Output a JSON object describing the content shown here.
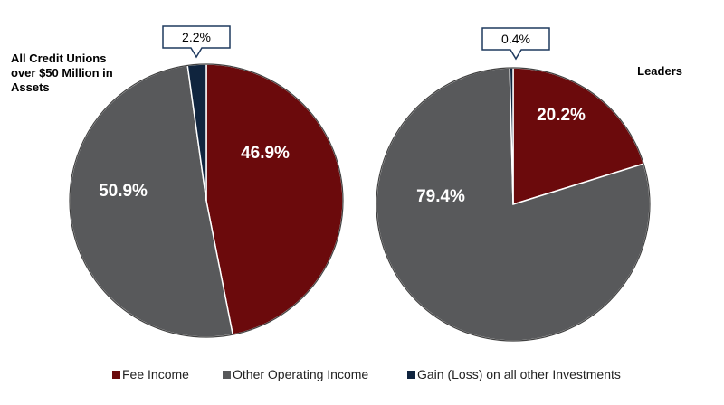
{
  "legend": {
    "placement": "bottom",
    "items": [
      {
        "label": "Fee Income",
        "color": "#6b0a0c"
      },
      {
        "label": "Other Operating Income",
        "color": "#58595b"
      },
      {
        "label": "Gain (Loss) on all other Investments",
        "color": "#0f243e"
      }
    ]
  },
  "chart_data": [
    {
      "type": "pie",
      "title": "All Credit Unions over $50 Million in Assets",
      "title_lines": [
        "All Credit Unions",
        "over $50 Million in",
        "Assets"
      ],
      "slices": [
        {
          "name": "Fee Income",
          "value": 46.9,
          "label": "46.9%",
          "color": "#6b0a0c"
        },
        {
          "name": "Other Operating Income",
          "value": 50.9,
          "label": "50.9%",
          "color": "#58595b"
        },
        {
          "name": "Gain (Loss) on all other Investments",
          "value": 2.2,
          "label": "2.2%",
          "color": "#0f243e"
        }
      ]
    },
    {
      "type": "pie",
      "title": "Leaders",
      "title_lines": [
        "Leaders"
      ],
      "slices": [
        {
          "name": "Fee Income",
          "value": 20.2,
          "label": "20.2%",
          "color": "#6b0a0c"
        },
        {
          "name": "Other Operating Income",
          "value": 79.4,
          "label": "79.4%",
          "color": "#58595b"
        },
        {
          "name": "Gain (Loss) on all other Investments",
          "value": 0.4,
          "label": "0.4%",
          "color": "#0f243e"
        }
      ]
    }
  ]
}
